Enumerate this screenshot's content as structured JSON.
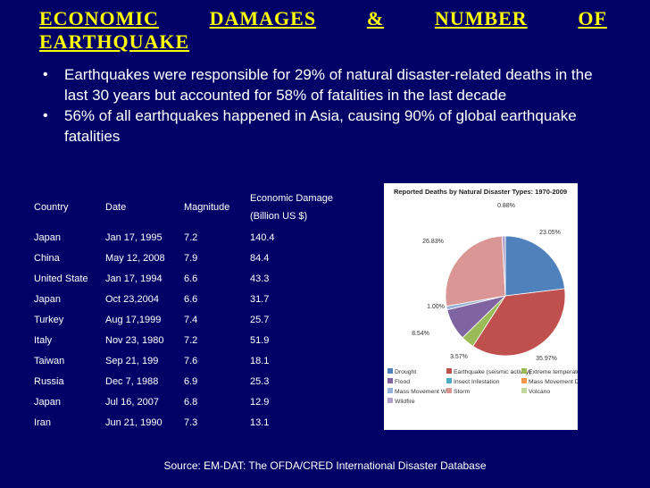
{
  "slide": {
    "title_line1": [
      "ECONOMIC",
      "DAMAGES",
      "&",
      "NUMBER",
      "OF"
    ],
    "title_line2": "EARTHQUAKE",
    "bullets": [
      "Earthquakes were responsible for 29% of natural disaster-related deaths in the last 30 years but accounted for 58% of fatalities in the last decade",
      "56% of all earthquakes happened in Asia, causing 90% of global earthquake fatalities"
    ],
    "bullet_glyph": "•",
    "source": "Source: EM-DAT: The OFDA/CRED International Disaster Database"
  },
  "table": {
    "headers": [
      "Country",
      "Date",
      "Magnitude",
      "Economic Damage",
      "(Billion US $)"
    ],
    "rows": [
      [
        "Japan",
        "Jan 17, 1995",
        "7.2",
        "140.4"
      ],
      [
        "China",
        "May 12, 2008",
        "7.9",
        "84.4"
      ],
      [
        "United State",
        "Jan 17, 1994",
        "6.6",
        "43.3"
      ],
      [
        "Japan",
        "Oct 23,2004",
        "6.6",
        "31.7"
      ],
      [
        "Turkey",
        "Aug 17,1999",
        "7.4",
        "25.7"
      ],
      [
        "Italy",
        "Nov 23, 1980",
        "7.2",
        "51.9"
      ],
      [
        "Taiwan",
        "Sep 21, 199",
        "7.6",
        "18.1"
      ],
      [
        "Russia",
        "Dec 7, 1988",
        "6.9",
        "25.3"
      ],
      [
        "Japan",
        "Jul 16, 2007",
        "6.8",
        "12.9"
      ],
      [
        "Iran",
        "Jun 21, 1990",
        "7.3",
        "13.1"
      ]
    ]
  },
  "colors": {
    "background": "#000066",
    "title": "#ffff00",
    "text": "#ffffff"
  },
  "chart_data": {
    "type": "pie",
    "title": "Reported Deaths by Natural Disaster Types: 1970-2009",
    "legend_position": "bottom",
    "slices": [
      {
        "name": "Drought",
        "value": 23.05,
        "label": "23.05%",
        "color": "#4f81bd"
      },
      {
        "name": "Earthquake (seismic activity)",
        "value": 35.97,
        "label": "35.97%",
        "color": "#c0504d"
      },
      {
        "name": "Extreme temperature",
        "value": 3.57,
        "label": "3.57%",
        "color": "#9bbb59"
      },
      {
        "name": "Flood",
        "value": 8.54,
        "label": "8.54%",
        "color": "#8064a2"
      },
      {
        "name": "Insect Infestation",
        "value": 0.0,
        "label": "",
        "color": "#4bacc6"
      },
      {
        "name": "Mass Movement Dry",
        "value": 0.0,
        "label": "",
        "color": "#f79646"
      },
      {
        "name": "Mass Movement Wet",
        "value": 1.0,
        "label": "1.00%",
        "color": "#95b3d7"
      },
      {
        "name": "Storm",
        "value": 26.83,
        "label": "26.83%",
        "color": "#da9694"
      },
      {
        "name": "Volcano",
        "value": 0.0,
        "label": "",
        "color": "#c3d69b"
      },
      {
        "name": "Wildfire",
        "value": 0.88,
        "label": "0.88%",
        "color": "#b3a2c7"
      }
    ],
    "legend": [
      [
        "Drought",
        "Earthquake (seismic activity)",
        "Extreme temperature"
      ],
      [
        "Flood",
        "Insect Infestation",
        "Mass Movement Dry"
      ],
      [
        "Mass Movement Wet",
        "Storm",
        "Volcano"
      ],
      [
        "Wildfire"
      ]
    ]
  }
}
